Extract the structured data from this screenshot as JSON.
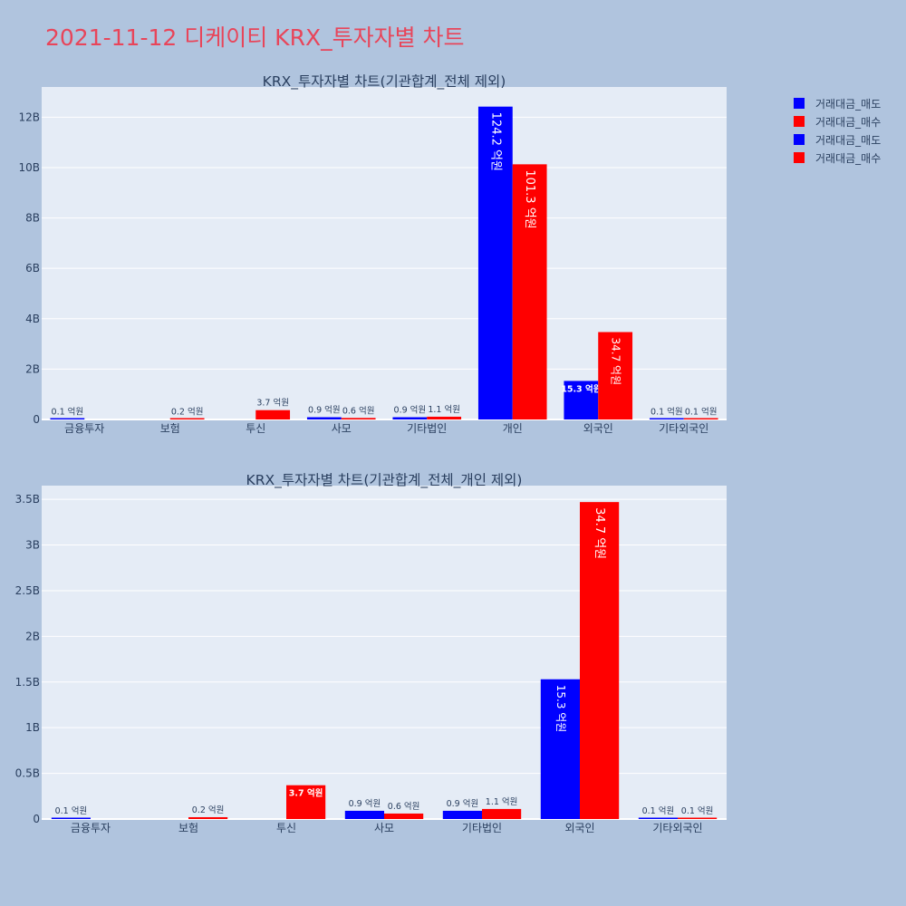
{
  "page_title": "2021-11-12 디케이티 KRX_투자자별 차트",
  "legend": [
    {
      "label": "거래대금_매도",
      "color": "#0000ff"
    },
    {
      "label": "거래대금_매수",
      "color": "#ff0000"
    },
    {
      "label": "거래대금_매도",
      "color": "#0000ff"
    },
    {
      "label": "거래대금_매수",
      "color": "#ff0000"
    }
  ],
  "colors": {
    "sell": "#0000ff",
    "buy": "#ff0000",
    "plot_bg": "#e5ecf6",
    "page_bg": "#b0c4de",
    "title": "#e8455a"
  },
  "chart_data": [
    {
      "type": "bar",
      "title": "KRX_투자자별 차트(기관합계_전체 제외)",
      "categories": [
        "금융투자",
        "보험",
        "투신",
        "사모",
        "기타법인",
        "개인",
        "외국인",
        "기타외국인"
      ],
      "series": [
        {
          "name": "거래대금_매도",
          "values": [
            10000000,
            0,
            0,
            90000000,
            90000000,
            12420000000,
            1530000000,
            10000000
          ],
          "labels": [
            "0.1 억원",
            "",
            "",
            "0.9 억원",
            "0.9 억원",
            "124.2 억원",
            "15.3 억원",
            "0.1 억원"
          ]
        },
        {
          "name": "거래대금_매수",
          "values": [
            0,
            20000000,
            370000000,
            60000000,
            110000000,
            10130000000,
            3470000000,
            10000000
          ],
          "labels": [
            "",
            "0.2 억원",
            "3.7 억원",
            "0.6 억원",
            "1.1 억원",
            "101.3 억원",
            "34.7 억원",
            "0.1 억원"
          ]
        }
      ],
      "ylim": [
        0,
        13200000000
      ],
      "yticks": [
        0,
        2000000000,
        4000000000,
        6000000000,
        8000000000,
        10000000000,
        12000000000
      ],
      "ytick_labels": [
        "0",
        "2B",
        "4B",
        "6B",
        "8B",
        "10B",
        "12B"
      ],
      "grid": true
    },
    {
      "type": "bar",
      "title": "KRX_투자자별 차트(기관합계_전체_개인 제외)",
      "categories": [
        "금융투자",
        "보험",
        "투신",
        "사모",
        "기타법인",
        "외국인",
        "기타외국인"
      ],
      "series": [
        {
          "name": "거래대금_매도",
          "values": [
            10000000,
            0,
            0,
            90000000,
            90000000,
            1530000000,
            10000000
          ],
          "labels": [
            "0.1 억원",
            "",
            "",
            "0.9 억원",
            "0.9 억원",
            "15.3 억원",
            "0.1 억원"
          ]
        },
        {
          "name": "거래대금_매수",
          "values": [
            0,
            20000000,
            370000000,
            60000000,
            110000000,
            3470000000,
            10000000
          ],
          "labels": [
            "",
            "0.2 억원",
            "3.7 억원",
            "0.6 억원",
            "1.1 억원",
            "34.7 억원",
            "0.1 억원"
          ]
        }
      ],
      "ylim": [
        0,
        3650000000
      ],
      "yticks": [
        0,
        500000000,
        1000000000,
        1500000000,
        2000000000,
        2500000000,
        3000000000,
        3500000000
      ],
      "ytick_labels": [
        "0",
        "0.5B",
        "1B",
        "1.5B",
        "2B",
        "2.5B",
        "3B",
        "3.5B"
      ],
      "grid": true
    }
  ]
}
